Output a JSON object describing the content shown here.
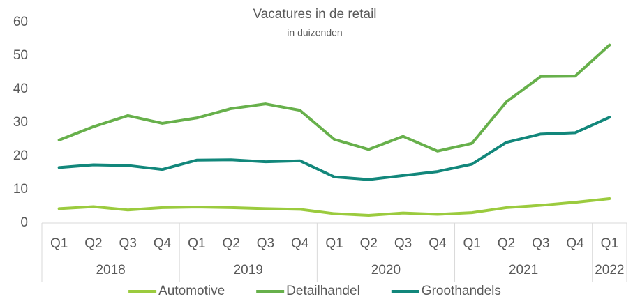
{
  "chart_data": {
    "type": "line",
    "title": "Vacatures in de retail",
    "subtitle": "in duizenden",
    "categories": [
      {
        "quarter": "Q1",
        "year": "2018"
      },
      {
        "quarter": "Q2",
        "year": "2018"
      },
      {
        "quarter": "Q3",
        "year": "2018"
      },
      {
        "quarter": "Q4",
        "year": "2018"
      },
      {
        "quarter": "Q1",
        "year": "2019"
      },
      {
        "quarter": "Q2",
        "year": "2019"
      },
      {
        "quarter": "Q3",
        "year": "2019"
      },
      {
        "quarter": "Q4",
        "year": "2019"
      },
      {
        "quarter": "Q1",
        "year": "2020"
      },
      {
        "quarter": "Q2",
        "year": "2020"
      },
      {
        "quarter": "Q3",
        "year": "2020"
      },
      {
        "quarter": "Q4",
        "year": "2020"
      },
      {
        "quarter": "Q1",
        "year": "2021"
      },
      {
        "quarter": "Q2",
        "year": "2021"
      },
      {
        "quarter": "Q3",
        "year": "2021"
      },
      {
        "quarter": "Q4",
        "year": "2021"
      },
      {
        "quarter": "Q1",
        "year": "2022"
      }
    ],
    "series": [
      {
        "name": "Automotive",
        "color": "#9bcb3e",
        "values": [
          4.3,
          4.9,
          3.9,
          4.6,
          4.8,
          4.6,
          4.3,
          4.1,
          2.8,
          2.3,
          3.0,
          2.6,
          3.1,
          4.6,
          5.3,
          6.2,
          7.3
        ]
      },
      {
        "name": "Detailhandel",
        "color": "#67b04b",
        "values": [
          24.8,
          28.8,
          32.1,
          29.8,
          31.4,
          34.2,
          35.6,
          33.7,
          25.0,
          22.0,
          25.9,
          21.5,
          23.8,
          36.2,
          43.8,
          43.9,
          53.2
        ]
      },
      {
        "name": "Groothandels",
        "color": "#12877b",
        "values": [
          16.6,
          17.4,
          17.2,
          16.0,
          18.8,
          18.9,
          18.3,
          18.6,
          13.8,
          13.0,
          14.2,
          15.4,
          17.6,
          24.1,
          26.6,
          27.0,
          31.6
        ]
      }
    ],
    "ylim": [
      0,
      60
    ],
    "yticks": [
      0,
      10,
      20,
      30,
      40,
      50,
      60
    ],
    "grid": false,
    "legend": "bottom"
  }
}
